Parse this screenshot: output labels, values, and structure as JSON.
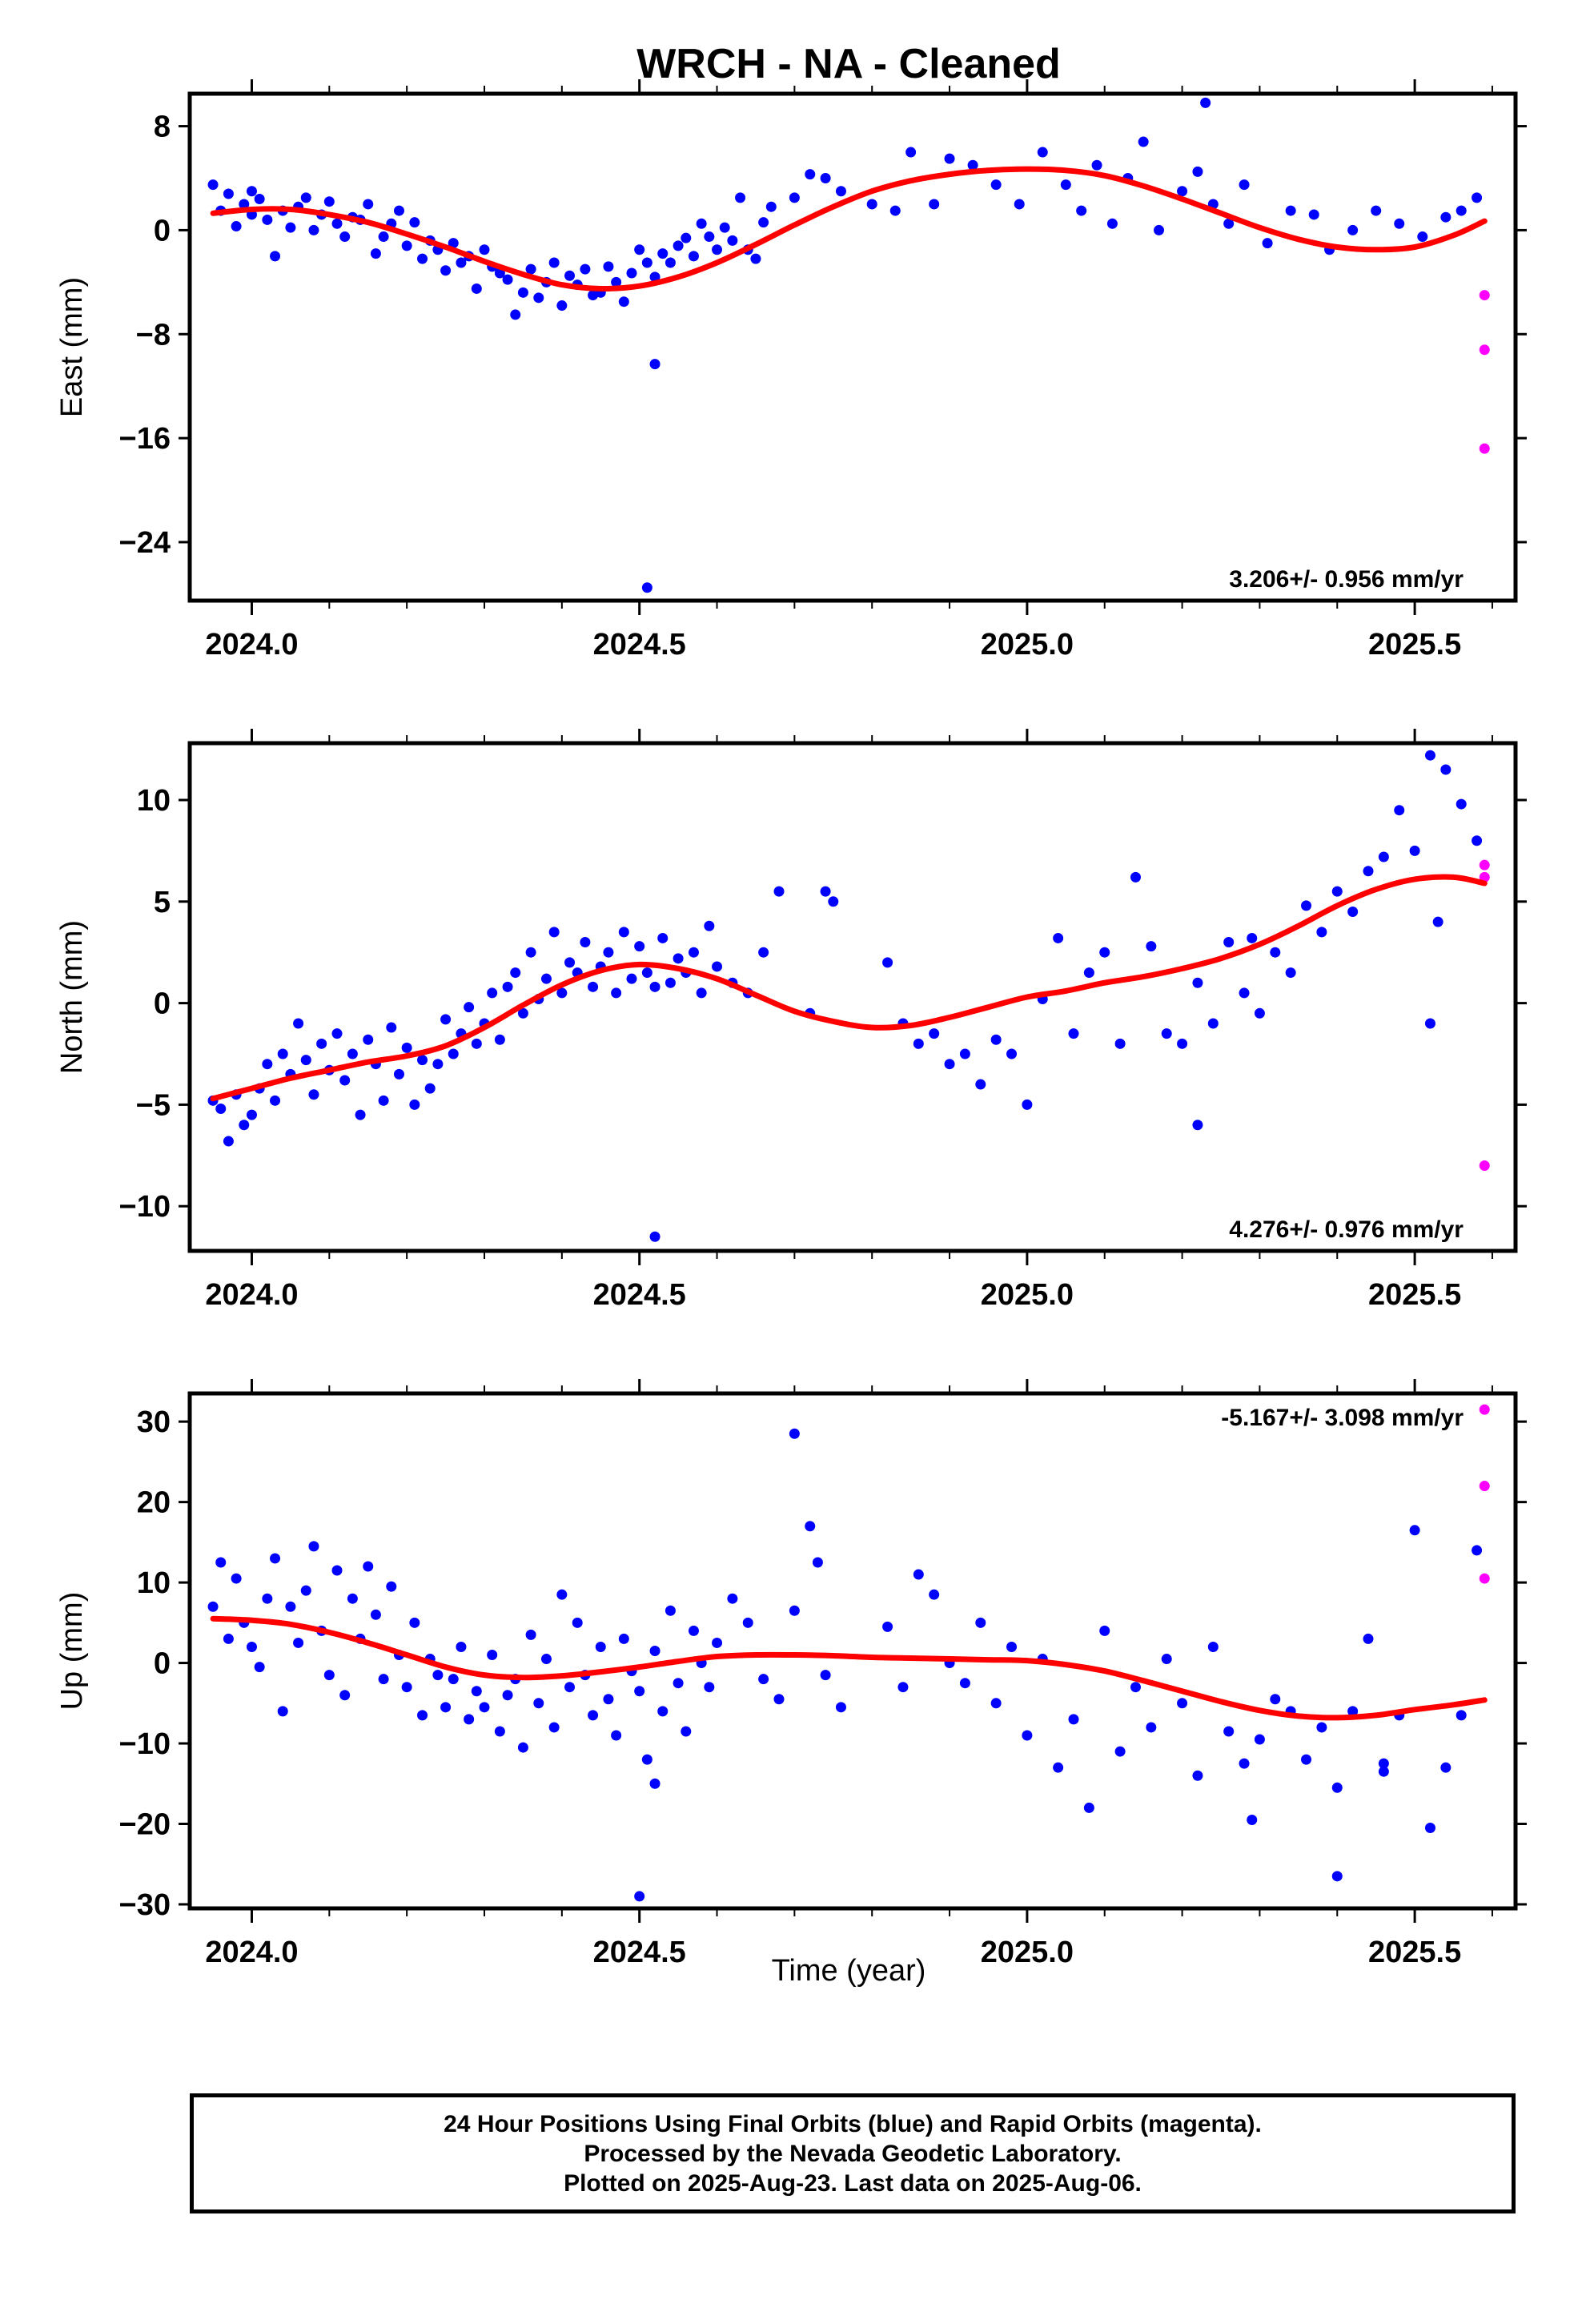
{
  "title": "WRCH  - NA - Cleaned",
  "xlabel": "Time (year)",
  "caption": {
    "line1": "24 Hour Positions Using Final Orbits (blue) and Rapid Orbits (magenta).",
    "line2": "Processed by the Nevada Geodetic Laboratory.",
    "line3": "Plotted on 2025-Aug-23. Last data on 2025-Aug-06."
  },
  "colors": {
    "final": "#0000ff",
    "rapid": "#ff00ff",
    "fit": "#ff0000"
  },
  "chart_data": [
    {
      "type": "scatter",
      "name": "east",
      "ylabel": "East (mm)",
      "rate": "3.206+/- 0.956 mm/yr",
      "xlim": [
        2023.92,
        2025.63
      ],
      "ylim": [
        -28.5,
        10.5
      ],
      "yticks": [
        8,
        0,
        -8,
        -16,
        -24
      ],
      "ytick_labels": [
        "8",
        "0",
        "−8",
        "−16",
        "−24"
      ],
      "xticks": [
        2024.0,
        2024.5,
        2025.0,
        2025.5
      ],
      "xtick_labels": [
        "2024.0",
        "2024.5",
        "2025.0",
        "2025.5"
      ],
      "fit": {
        "x": [
          2023.95,
          2024.0,
          2024.05,
          2024.1,
          2024.15,
          2024.2,
          2024.25,
          2024.3,
          2024.35,
          2024.4,
          2024.45,
          2024.5,
          2024.55,
          2024.6,
          2024.65,
          2024.7,
          2024.75,
          2024.8,
          2024.85,
          2024.9,
          2024.95,
          2025.0,
          2025.05,
          2025.1,
          2025.15,
          2025.2,
          2025.25,
          2025.3,
          2025.35,
          2025.4,
          2025.45,
          2025.5,
          2025.55,
          2025.59
        ],
        "y": [
          1.3,
          1.6,
          1.6,
          1.2,
          0.6,
          -0.3,
          -1.3,
          -2.4,
          -3.4,
          -4.2,
          -4.5,
          -4.3,
          -3.6,
          -2.5,
          -1.1,
          0.4,
          1.8,
          3.0,
          3.8,
          4.3,
          4.6,
          4.7,
          4.6,
          4.2,
          3.4,
          2.4,
          1.3,
          0.2,
          -0.7,
          -1.3,
          -1.5,
          -1.3,
          -0.4,
          0.7
        ]
      },
      "final": {
        "x": [
          2023.95,
          2023.96,
          2023.97,
          2023.98,
          2023.99,
          2024.0,
          2024.0,
          2024.01,
          2024.02,
          2024.03,
          2024.04,
          2024.05,
          2024.06,
          2024.07,
          2024.08,
          2024.09,
          2024.1,
          2024.11,
          2024.12,
          2024.13,
          2024.14,
          2024.15,
          2024.16,
          2024.17,
          2024.18,
          2024.19,
          2024.2,
          2024.21,
          2024.22,
          2024.23,
          2024.24,
          2024.25,
          2024.26,
          2024.27,
          2024.28,
          2024.29,
          2024.3,
          2024.31,
          2024.32,
          2024.33,
          2024.34,
          2024.35,
          2024.36,
          2024.37,
          2024.38,
          2024.39,
          2024.4,
          2024.41,
          2024.42,
          2024.43,
          2024.44,
          2024.45,
          2024.46,
          2024.47,
          2024.48,
          2024.49,
          2024.5,
          2024.51,
          2024.52,
          2024.53,
          2024.54,
          2024.55,
          2024.56,
          2024.57,
          2024.58,
          2024.59,
          2024.6,
          2024.61,
          2024.62,
          2024.63,
          2024.64,
          2024.65,
          2024.66,
          2024.67,
          2024.7,
          2024.72,
          2024.74,
          2024.76,
          2024.8,
          2024.83,
          2024.85,
          2024.88,
          2024.9,
          2024.93,
          2024.96,
          2024.99,
          2025.02,
          2025.05,
          2025.07,
          2025.09,
          2025.11,
          2025.13,
          2025.15,
          2025.17,
          2025.2,
          2025.22,
          2025.24,
          2025.26,
          2025.28,
          2025.31,
          2025.34,
          2025.37,
          2025.39,
          2025.42,
          2025.45,
          2025.48,
          2025.51,
          2025.54,
          2025.56,
          2025.58,
          2024.52,
          2024.51,
          2025.23
        ],
        "y": [
          3.5,
          1.5,
          2.8,
          0.3,
          2.0,
          1.2,
          3.0,
          2.4,
          0.8,
          -2.0,
          1.5,
          0.2,
          1.8,
          2.5,
          0.0,
          1.2,
          2.2,
          0.5,
          -0.5,
          1.0,
          0.8,
          2.0,
          -1.8,
          -0.5,
          0.5,
          1.5,
          -1.2,
          0.6,
          -2.2,
          -0.8,
          -1.5,
          -3.1,
          -1.0,
          -2.5,
          -2.0,
          -4.5,
          -1.5,
          -2.8,
          -3.3,
          -3.8,
          -6.5,
          -4.8,
          -3.0,
          -5.2,
          -4.0,
          -2.5,
          -5.8,
          -3.5,
          -4.2,
          -3.0,
          -5.0,
          -4.8,
          -2.8,
          -4.0,
          -5.5,
          -3.3,
          -1.5,
          -2.5,
          -3.6,
          -1.8,
          -2.5,
          -1.2,
          -0.6,
          -2.0,
          0.5,
          -0.5,
          -1.5,
          0.2,
          -0.8,
          2.5,
          -1.5,
          -2.2,
          0.6,
          1.8,
          2.5,
          4.3,
          4.0,
          3.0,
          2.0,
          1.5,
          6.0,
          2.0,
          5.5,
          5.0,
          3.5,
          2.0,
          6.0,
          3.5,
          1.5,
          5.0,
          0.5,
          4.0,
          6.8,
          0.0,
          3.0,
          4.5,
          2.0,
          0.5,
          3.5,
          -1.0,
          1.5,
          1.2,
          -1.5,
          0.0,
          1.5,
          0.5,
          -0.5,
          1.0,
          1.5,
          2.5,
          -10.3,
          -27.5,
          9.8
        ]
      },
      "rapid": {
        "x": [
          2025.59,
          2025.59,
          2025.59
        ],
        "y": [
          -5.0,
          -9.2,
          -16.8
        ]
      }
    },
    {
      "type": "scatter",
      "name": "north",
      "ylabel": "North (mm)",
      "rate": "4.276+/- 0.976 mm/yr",
      "xlim": [
        2023.92,
        2025.63
      ],
      "ylim": [
        -12.2,
        12.8
      ],
      "yticks": [
        10,
        5,
        0,
        -5,
        -10
      ],
      "ytick_labels": [
        "10",
        "5",
        "0",
        "−5",
        "−10"
      ],
      "xticks": [
        2024.0,
        2024.5,
        2025.0,
        2025.5
      ],
      "xtick_labels": [
        "2024.0",
        "2024.5",
        "2025.0",
        "2025.5"
      ],
      "fit": {
        "x": [
          2023.95,
          2024.0,
          2024.05,
          2024.1,
          2024.15,
          2024.2,
          2024.25,
          2024.3,
          2024.35,
          2024.4,
          2024.45,
          2024.5,
          2024.55,
          2024.6,
          2024.65,
          2024.7,
          2024.75,
          2024.8,
          2024.85,
          2024.9,
          2024.95,
          2025.0,
          2025.05,
          2025.1,
          2025.15,
          2025.2,
          2025.25,
          2025.3,
          2025.35,
          2025.4,
          2025.45,
          2025.5,
          2025.55,
          2025.59
        ],
        "y": [
          -4.7,
          -4.2,
          -3.7,
          -3.3,
          -2.9,
          -2.6,
          -2.1,
          -1.2,
          -0.1,
          0.9,
          1.6,
          1.9,
          1.7,
          1.2,
          0.4,
          -0.4,
          -0.9,
          -1.2,
          -1.1,
          -0.7,
          -0.2,
          0.3,
          0.6,
          1.0,
          1.3,
          1.7,
          2.2,
          2.9,
          3.8,
          4.8,
          5.6,
          6.1,
          6.2,
          5.9
        ]
      },
      "final": {
        "x": [
          2023.95,
          2023.96,
          2023.97,
          2023.98,
          2023.99,
          2024.0,
          2024.01,
          2024.02,
          2024.03,
          2024.04,
          2024.05,
          2024.06,
          2024.07,
          2024.08,
          2024.09,
          2024.1,
          2024.11,
          2024.12,
          2024.13,
          2024.14,
          2024.15,
          2024.16,
          2024.17,
          2024.18,
          2024.19,
          2024.2,
          2024.21,
          2024.22,
          2024.23,
          2024.24,
          2024.25,
          2024.26,
          2024.27,
          2024.28,
          2024.29,
          2024.3,
          2024.31,
          2024.32,
          2024.33,
          2024.34,
          2024.35,
          2024.36,
          2024.37,
          2024.38,
          2024.39,
          2024.4,
          2024.41,
          2024.42,
          2024.43,
          2024.44,
          2024.45,
          2024.46,
          2024.47,
          2024.48,
          2024.49,
          2024.5,
          2024.51,
          2024.52,
          2024.53,
          2024.54,
          2024.55,
          2024.56,
          2024.57,
          2024.58,
          2024.59,
          2024.6,
          2024.62,
          2024.64,
          2024.66,
          2024.68,
          2024.72,
          2024.74,
          2024.75,
          2024.82,
          2024.84,
          2024.86,
          2024.88,
          2024.9,
          2024.92,
          2024.94,
          2024.96,
          2024.98,
          2025.0,
          2025.02,
          2025.04,
          2025.06,
          2025.08,
          2025.1,
          2025.12,
          2025.14,
          2025.16,
          2025.18,
          2025.2,
          2025.22,
          2025.24,
          2025.26,
          2025.28,
          2025.29,
          2025.3,
          2025.32,
          2025.34,
          2025.36,
          2025.38,
          2025.4,
          2025.42,
          2025.44,
          2025.46,
          2025.48,
          2025.5,
          2025.52,
          2025.54,
          2025.56,
          2025.58,
          2024.52,
          2025.22,
          2025.52,
          2025.53
        ],
        "y": [
          -4.8,
          -5.2,
          -6.8,
          -4.5,
          -6.0,
          -5.5,
          -4.2,
          -3.0,
          -4.8,
          -2.5,
          -3.5,
          -1.0,
          -2.8,
          -4.5,
          -2.0,
          -3.3,
          -1.5,
          -3.8,
          -2.5,
          -5.5,
          -1.8,
          -3.0,
          -4.8,
          -1.2,
          -3.5,
          -2.2,
          -5.0,
          -2.8,
          -4.2,
          -3.0,
          -0.8,
          -2.5,
          -1.5,
          -0.2,
          -2.0,
          -1.0,
          0.5,
          -1.8,
          0.8,
          1.5,
          -0.5,
          2.5,
          0.2,
          1.2,
          3.5,
          0.5,
          2.0,
          1.5,
          3.0,
          0.8,
          1.8,
          2.5,
          0.5,
          3.5,
          1.2,
          2.8,
          1.5,
          0.8,
          3.2,
          1.0,
          2.2,
          1.5,
          2.5,
          0.5,
          3.8,
          1.8,
          1.0,
          0.5,
          2.5,
          5.5,
          -0.5,
          5.5,
          5.0,
          2.0,
          -1.0,
          -2.0,
          -1.5,
          -3.0,
          -2.5,
          -4.0,
          -1.8,
          -2.5,
          -5.0,
          0.2,
          3.2,
          -1.5,
          1.5,
          2.5,
          -2.0,
          6.2,
          2.8,
          -1.5,
          -2.0,
          1.0,
          -1.0,
          3.0,
          0.5,
          3.2,
          -0.5,
          2.5,
          1.5,
          4.8,
          3.5,
          5.5,
          4.5,
          6.5,
          7.2,
          9.5,
          7.5,
          12.2,
          11.5,
          9.8,
          8.0,
          -11.5,
          -6.0,
          -1.0,
          4.0
        ],
        "note": "final"
      },
      "rapid": {
        "x": [
          2025.59,
          2025.59,
          2025.59
        ],
        "y": [
          6.8,
          6.2,
          -8.0
        ]
      }
    },
    {
      "type": "scatter",
      "name": "up",
      "ylabel": "Up (mm)",
      "rate": "-5.167+/- 3.098 mm/yr",
      "xlim": [
        2023.92,
        2025.63
      ],
      "ylim": [
        -30.5,
        33.5
      ],
      "yticks": [
        30,
        20,
        10,
        0,
        -10,
        -20,
        -30
      ],
      "ytick_labels": [
        "30",
        "20",
        "10",
        "0",
        "−10",
        "−20",
        "−30"
      ],
      "xticks": [
        2024.0,
        2024.5,
        2025.0,
        2025.5
      ],
      "xtick_labels": [
        "2024.0",
        "2024.5",
        "2025.0",
        "2025.5"
      ],
      "fit": {
        "x": [
          2023.95,
          2024.0,
          2024.05,
          2024.1,
          2024.15,
          2024.2,
          2024.25,
          2024.3,
          2024.35,
          2024.4,
          2024.45,
          2024.5,
          2024.55,
          2024.6,
          2024.65,
          2024.7,
          2024.75,
          2024.8,
          2024.85,
          2024.9,
          2024.95,
          2025.0,
          2025.05,
          2025.1,
          2025.15,
          2025.2,
          2025.25,
          2025.3,
          2025.35,
          2025.4,
          2025.45,
          2025.5,
          2025.55,
          2025.59
        ],
        "y": [
          5.5,
          5.3,
          4.8,
          3.8,
          2.5,
          1.0,
          -0.5,
          -1.5,
          -1.8,
          -1.6,
          -1.1,
          -0.5,
          0.2,
          0.8,
          1.0,
          1.0,
          0.9,
          0.7,
          0.6,
          0.5,
          0.4,
          0.3,
          -0.2,
          -1.0,
          -2.2,
          -3.5,
          -4.8,
          -5.9,
          -6.6,
          -6.8,
          -6.5,
          -5.8,
          -5.2,
          -4.6
        ]
      },
      "final": {
        "x": [
          2023.95,
          2023.96,
          2023.97,
          2023.98,
          2023.99,
          2024.0,
          2024.01,
          2024.02,
          2024.03,
          2024.04,
          2024.05,
          2024.06,
          2024.07,
          2024.08,
          2024.09,
          2024.1,
          2024.11,
          2024.12,
          2024.13,
          2024.14,
          2024.15,
          2024.16,
          2024.17,
          2024.18,
          2024.19,
          2024.2,
          2024.21,
          2024.22,
          2024.23,
          2024.24,
          2024.25,
          2024.26,
          2024.27,
          2024.28,
          2024.29,
          2024.3,
          2024.31,
          2024.32,
          2024.33,
          2024.34,
          2024.35,
          2024.36,
          2024.37,
          2024.38,
          2024.39,
          2024.4,
          2024.41,
          2024.42,
          2024.43,
          2024.44,
          2024.45,
          2024.46,
          2024.47,
          2024.48,
          2024.49,
          2024.5,
          2024.51,
          2024.52,
          2024.53,
          2024.54,
          2024.55,
          2024.56,
          2024.57,
          2024.58,
          2024.59,
          2024.6,
          2024.62,
          2024.64,
          2024.66,
          2024.68,
          2024.7,
          2024.72,
          2024.74,
          2024.76,
          2024.82,
          2024.84,
          2024.86,
          2024.88,
          2024.9,
          2024.92,
          2024.94,
          2024.96,
          2024.98,
          2025.0,
          2025.02,
          2025.04,
          2025.06,
          2025.08,
          2025.1,
          2025.12,
          2025.14,
          2025.16,
          2025.18,
          2025.2,
          2025.22,
          2025.24,
          2025.26,
          2025.28,
          2025.29,
          2025.3,
          2025.32,
          2025.34,
          2025.36,
          2025.38,
          2025.4,
          2025.42,
          2025.44,
          2025.46,
          2025.48,
          2025.5,
          2025.52,
          2025.54,
          2025.56,
          2025.58,
          2024.52,
          2024.5,
          2024.7,
          2024.73,
          2025.4,
          2025.46
        ],
        "y": [
          7.0,
          12.5,
          3.0,
          10.5,
          5.0,
          2.0,
          -0.5,
          8.0,
          13.0,
          -6.0,
          7.0,
          2.5,
          9.0,
          14.5,
          4.0,
          -1.5,
          11.5,
          -4.0,
          8.0,
          3.0,
          12.0,
          6.0,
          -2.0,
          9.5,
          1.0,
          -3.0,
          5.0,
          -6.5,
          0.5,
          -1.5,
          -5.5,
          -2.0,
          2.0,
          -7.0,
          -3.5,
          -5.5,
          1.0,
          -8.5,
          -4.0,
          -2.0,
          -10.5,
          3.5,
          -5.0,
          0.5,
          -8.0,
          8.5,
          -3.0,
          5.0,
          -1.5,
          -6.5,
          2.0,
          -4.5,
          -9.0,
          3.0,
          -1.0,
          -3.5,
          -12.0,
          1.5,
          -6.0,
          6.5,
          -2.5,
          -8.5,
          4.0,
          0.0,
          -3.0,
          2.5,
          8.0,
          5.0,
          -2.0,
          -4.5,
          6.5,
          17.0,
          -1.5,
          -5.5,
          4.5,
          -3.0,
          11.0,
          8.5,
          0.0,
          -2.5,
          5.0,
          -5.0,
          2.0,
          -9.0,
          0.5,
          -13.0,
          -7.0,
          -18.0,
          4.0,
          -11.0,
          -3.0,
          -8.0,
          0.5,
          -5.0,
          -14.0,
          2.0,
          -8.5,
          -12.5,
          -19.5,
          -9.5,
          -4.5,
          -6.0,
          -12.0,
          -8.0,
          -15.5,
          -6.0,
          3.0,
          -12.5,
          -6.5,
          16.5,
          -20.5,
          -13.0,
          -6.5,
          14.0,
          -15.0,
          -29.0,
          28.5,
          12.5,
          -26.5,
          -13.5
        ],
        "note": "final"
      },
      "rapid": {
        "x": [
          2025.59,
          2025.59,
          2025.59
        ],
        "y": [
          31.5,
          22.0,
          10.5
        ]
      }
    }
  ]
}
